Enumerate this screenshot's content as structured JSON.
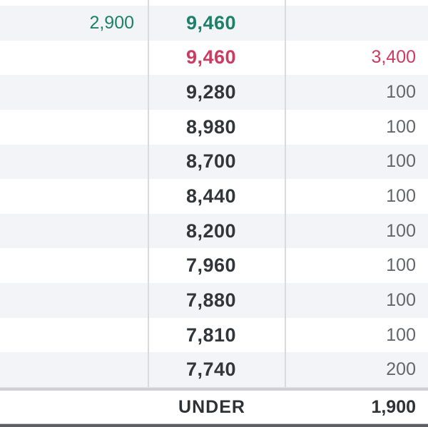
{
  "orderbook": {
    "rows": [
      {
        "sell": "2,900",
        "price": "9,460",
        "buy": "",
        "sell_color": "green",
        "price_color": "green",
        "buy_color": ""
      },
      {
        "sell": "",
        "price": "9,460",
        "buy": "3,400",
        "sell_color": "",
        "price_color": "red",
        "buy_color": "red"
      },
      {
        "sell": "",
        "price": "9,280",
        "buy": "100",
        "sell_color": "",
        "price_color": "",
        "buy_color": ""
      },
      {
        "sell": "",
        "price": "8,980",
        "buy": "100",
        "sell_color": "",
        "price_color": "",
        "buy_color": ""
      },
      {
        "sell": "",
        "price": "8,700",
        "buy": "100",
        "sell_color": "",
        "price_color": "",
        "buy_color": ""
      },
      {
        "sell": "",
        "price": "8,440",
        "buy": "100",
        "sell_color": "",
        "price_color": "",
        "buy_color": ""
      },
      {
        "sell": "",
        "price": "8,200",
        "buy": "100",
        "sell_color": "",
        "price_color": "",
        "buy_color": ""
      },
      {
        "sell": "",
        "price": "7,960",
        "buy": "100",
        "sell_color": "",
        "price_color": "",
        "buy_color": ""
      },
      {
        "sell": "",
        "price": "7,880",
        "buy": "100",
        "sell_color": "",
        "price_color": "",
        "buy_color": ""
      },
      {
        "sell": "",
        "price": "7,810",
        "buy": "100",
        "sell_color": "",
        "price_color": "",
        "buy_color": ""
      },
      {
        "sell": "",
        "price": "7,740",
        "buy": "200",
        "sell_color": "",
        "price_color": "",
        "buy_color": ""
      }
    ],
    "footer": {
      "label": "UNDER",
      "value": "1,900"
    }
  },
  "colors": {
    "ask_green": "#1d8068",
    "ask_green_qty": "#35857a",
    "bid_red": "#cf3a61",
    "price_text": "#323539",
    "qty_text": "#63666c",
    "row_alt_bg": "#f3f4f7",
    "column_divider": "#d9dadd",
    "footer_separator": "#d0d0d4",
    "bottom_bar": "#5b5f64"
  }
}
